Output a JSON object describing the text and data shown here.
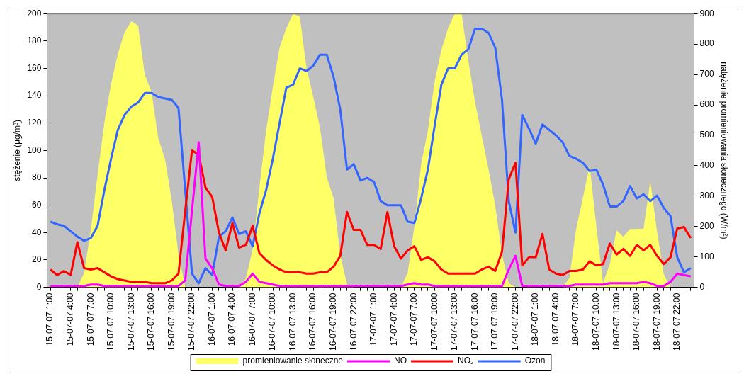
{
  "chart_data": {
    "type": "line",
    "ylabel": "stężenie (µg/m³)",
    "y2label": "natężenie promieniowania słonecznego (W/m²)",
    "categories": [
      "15-07-07 1:00",
      null,
      null,
      "15-07-07 4:00",
      null,
      null,
      "15-07-07 7:00",
      null,
      null,
      "15-07-07 10:00",
      null,
      null,
      "15-07-07 13:00",
      null,
      null,
      "15-07-07 16:00",
      null,
      null,
      "15-07-07 19:00",
      null,
      null,
      "15-07-07 22:00",
      null,
      null,
      "16-07-07 1:00",
      null,
      null,
      "16-07-07 4:00",
      null,
      null,
      "16-07-07 7:00",
      null,
      null,
      "16-07-07 10:00",
      null,
      null,
      "16-07-07 13:00",
      null,
      null,
      "16-07-07 16:00",
      null,
      null,
      "16-07-07 19:00",
      null,
      null,
      "16-07-07 22:00",
      null,
      null,
      "17-07-07 1:00",
      null,
      null,
      "17-07-07 4:00",
      null,
      null,
      "17-07-07 7:00",
      null,
      null,
      "17-07-07 10:00",
      null,
      null,
      "17-07-07 13:00",
      null,
      null,
      "17-07-07 16:00",
      null,
      null,
      "17-07-07 19:00",
      null,
      null,
      "17-07-07 22:00",
      null,
      null,
      "18-07-07 1:00",
      null,
      null,
      "18-07-07 4:00",
      null,
      null,
      "18-07-07 7:00",
      null,
      null,
      "18-07-07 10:00",
      null,
      null,
      "18-07-07 13:00",
      null,
      null,
      "18-07-07 16:00",
      null,
      null,
      "18-07-07 19:00",
      null,
      null,
      "18-07-07 22:00",
      null,
      null
    ],
    "series": [
      {
        "name": "promieniowanie słoneczne",
        "type": "area",
        "axis": "y2",
        "color": "#ffff66",
        "values": [
          0,
          0,
          0,
          0,
          0,
          47,
          190,
          370,
          541,
          669,
          767,
          839,
          875,
          861,
          699,
          643,
          490,
          422,
          285,
          107,
          0,
          0,
          0,
          0,
          0,
          0,
          0,
          0,
          0,
          30,
          124,
          328,
          515,
          660,
          788,
          852,
          900,
          890,
          720,
          626,
          524,
          362,
          294,
          107,
          9,
          0,
          0,
          0,
          0,
          0,
          0,
          0,
          0,
          47,
          200,
          405,
          515,
          677,
          780,
          852,
          900,
          900,
          745,
          609,
          498,
          388,
          268,
          107,
          13,
          0,
          0,
          0,
          0,
          0,
          0,
          0,
          0,
          30,
          192,
          294,
          400,
          200,
          13,
          77,
          187,
          166,
          192,
          192,
          193,
          349,
          183,
          43,
          0,
          0,
          0,
          0
        ]
      },
      {
        "name": "NO",
        "type": "line",
        "color": "#ff00ff",
        "values": [
          1,
          1,
          1,
          1,
          1,
          1,
          2,
          2,
          1,
          1,
          1,
          1,
          1,
          1,
          1,
          1,
          1,
          1,
          1,
          1,
          5,
          56,
          106,
          21,
          14,
          2,
          1,
          1,
          1,
          4,
          10,
          4,
          3,
          2,
          1,
          1,
          1,
          1,
          1,
          1,
          1,
          1,
          1,
          1,
          1,
          1,
          1,
          1,
          1,
          1,
          1,
          1,
          1,
          2,
          3,
          2,
          2,
          1,
          1,
          1,
          1,
          1,
          1,
          1,
          1,
          1,
          1,
          1,
          13,
          23,
          1,
          1,
          1,
          1,
          1,
          1,
          1,
          1,
          2,
          2,
          2,
          2,
          2,
          3,
          3,
          3,
          3,
          3,
          4,
          3,
          1,
          1,
          4,
          10,
          9,
          8
        ]
      },
      {
        "name": "NO₂",
        "type": "line",
        "color": "#ff0000",
        "values": [
          13,
          9,
          12,
          9,
          33,
          14,
          13,
          14,
          11,
          8,
          6,
          5,
          4,
          4,
          4,
          3,
          3,
          3,
          5,
          10,
          56,
          100,
          97,
          73,
          66,
          40,
          27,
          47,
          29,
          31,
          45,
          25,
          20,
          16,
          13,
          11,
          11,
          11,
          10,
          10,
          11,
          11,
          15,
          23,
          55,
          42,
          42,
          31,
          31,
          28,
          55,
          30,
          21,
          27,
          30,
          20,
          22,
          19,
          13,
          10,
          10,
          10,
          10,
          10,
          13,
          15,
          12,
          26,
          79,
          91,
          16,
          22,
          22,
          39,
          13,
          10,
          9,
          12,
          12,
          13,
          19,
          16,
          17,
          32,
          24,
          28,
          23,
          31,
          27,
          31,
          23,
          17,
          22,
          43,
          44,
          36
        ]
      },
      {
        "name": "Ozon",
        "type": "line",
        "color": "#3366ff",
        "values": [
          48,
          46,
          45,
          41,
          37,
          34,
          36,
          45,
          71,
          94,
          115,
          126,
          132,
          135,
          142,
          142,
          139,
          138,
          137,
          131,
          71,
          10,
          3,
          14,
          9,
          37,
          41,
          51,
          39,
          41,
          30,
          54,
          71,
          94,
          120,
          146,
          148,
          160,
          158,
          162,
          170,
          170,
          154,
          130,
          86,
          90,
          78,
          80,
          77,
          63,
          60,
          60,
          60,
          48,
          47,
          65,
          86,
          118,
          148,
          160,
          160,
          170,
          174,
          189,
          189,
          186,
          175,
          137,
          63,
          40,
          126,
          116,
          105,
          119,
          115,
          111,
          106,
          96,
          94,
          91,
          85,
          86,
          75,
          59,
          59,
          63,
          74,
          65,
          68,
          63,
          67,
          58,
          52,
          22,
          11,
          14
        ]
      }
    ],
    "ylim": [
      0,
      200
    ],
    "yticks": [
      0,
      20,
      40,
      60,
      80,
      100,
      120,
      140,
      160,
      180,
      200
    ],
    "y2lim": [
      0,
      900
    ],
    "y2ticks": [
      0,
      100,
      200,
      300,
      400,
      500,
      600,
      700,
      800,
      900
    ],
    "grid": false,
    "legend": "bottom",
    "marker": "none",
    "line_style": "solid"
  }
}
